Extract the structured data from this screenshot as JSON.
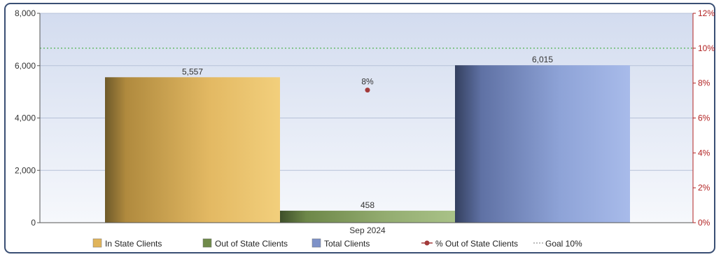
{
  "chart_data": {
    "type": "bar",
    "categories": [
      "Sep 2024"
    ],
    "series": [
      {
        "name": "In State Clients",
        "values": [
          5557
        ],
        "labels": [
          "5,557"
        ],
        "color": "#e0b45a"
      },
      {
        "name": "Out of State Clients",
        "values": [
          458
        ],
        "labels": [
          "458"
        ],
        "color": "#6f8a4a"
      },
      {
        "name": "Total Clients",
        "values": [
          6015
        ],
        "labels": [
          "6,015"
        ],
        "color": "#7e92c8"
      }
    ],
    "line_series": {
      "name": "% Out of State Clients",
      "values": [
        7.6
      ],
      "labels": [
        "8%"
      ],
      "color": "#a33a3a",
      "axis": "right"
    },
    "goal_line": {
      "name": "Goal 10%",
      "value": 10,
      "axis": "right",
      "color": "#3fae3f"
    },
    "y_left": {
      "ylim": [
        0,
        8000
      ],
      "ticks": [
        "0",
        "2,000",
        "4,000",
        "6,000",
        "8,000"
      ],
      "tick_values": [
        0,
        2000,
        4000,
        6000,
        8000
      ]
    },
    "y_right": {
      "ylim": [
        0,
        12
      ],
      "ticks": [
        "0%",
        "2%",
        "4%",
        "6%",
        "8%",
        "10%",
        "12%"
      ],
      "tick_values": [
        0,
        2,
        4,
        6,
        8,
        10,
        12
      ],
      "color": "#b22222"
    },
    "legend": {
      "position": "bottom",
      "items": [
        "In State Clients",
        "Out of State Clients",
        "Total Clients",
        "% Out of State Clients",
        "Goal 10%"
      ]
    },
    "title": "",
    "xlabel": "",
    "ylabel": ""
  }
}
